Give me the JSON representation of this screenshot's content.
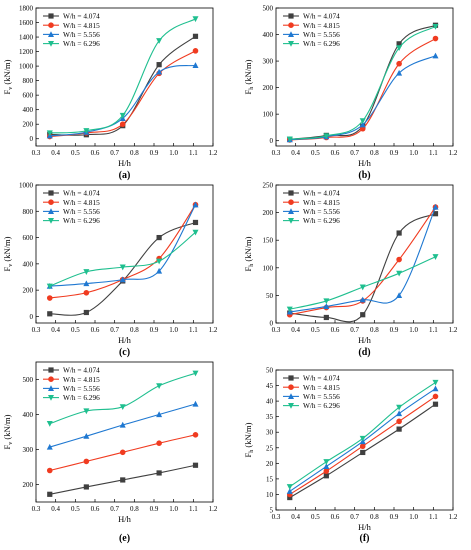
{
  "chart_data": [
    {
      "type": "line",
      "panel_label": "(a)",
      "ylabel": "F",
      "ylabel_sub": "v",
      "ylabel_unit": "(kN/m)",
      "xlabel": "H/h",
      "x_ticks": [
        "0.3",
        "0.4",
        "0.5",
        "0.6",
        "0.7",
        "0.8",
        "0.9",
        "1.0",
        "1.1",
        "1.2"
      ],
      "y_ticks": [
        "0",
        "200",
        "400",
        "600",
        "800",
        "1000",
        "1200",
        "1400",
        "1600",
        "1800"
      ],
      "xlim": [
        0.3,
        1.2
      ],
      "ylim": [
        -100,
        1800
      ],
      "legend_position": "top-left",
      "x": [
        0.37,
        0.556,
        0.741,
        0.926,
        1.111
      ],
      "series": [
        {
          "name": "W/h = 4.074",
          "color": "#404040",
          "marker": "square",
          "values": [
            60,
            55,
            180,
            1020,
            1410
          ]
        },
        {
          "name": "W/h = 4.815",
          "color": "#f03b20",
          "marker": "circle",
          "values": [
            30,
            80,
            200,
            900,
            1210
          ]
        },
        {
          "name": "W/h = 5.556",
          "color": "#1f78d1",
          "marker": "triangle-up",
          "values": [
            40,
            90,
            280,
            920,
            1010
          ]
        },
        {
          "name": "W/h = 6.296",
          "color": "#1fbf8f",
          "marker": "triangle-down",
          "values": [
            80,
            110,
            320,
            1350,
            1650
          ]
        }
      ]
    },
    {
      "type": "line",
      "panel_label": "(b)",
      "ylabel": "F",
      "ylabel_sub": "h",
      "ylabel_unit": "(kN/m)",
      "xlabel": "H/h",
      "x_ticks": [
        "0.3",
        "0.4",
        "0.5",
        "0.6",
        "0.7",
        "0.8",
        "0.9",
        "1.0",
        "1.1",
        "1.2"
      ],
      "y_ticks": [
        "0",
        "100",
        "200",
        "300",
        "400",
        "500"
      ],
      "xlim": [
        0.3,
        1.2
      ],
      "ylim": [
        -20,
        500
      ],
      "legend_position": "top-left",
      "x": [
        0.37,
        0.556,
        0.741,
        0.926,
        1.111
      ],
      "series": [
        {
          "name": "W/h = 4.074",
          "color": "#404040",
          "marker": "square",
          "values": [
            5,
            20,
            55,
            365,
            435
          ]
        },
        {
          "name": "W/h = 4.815",
          "color": "#f03b20",
          "marker": "circle",
          "values": [
            3,
            12,
            45,
            290,
            385
          ]
        },
        {
          "name": "W/h = 5.556",
          "color": "#1f78d1",
          "marker": "triangle-up",
          "values": [
            4,
            15,
            60,
            255,
            320
          ]
        },
        {
          "name": "W/h = 6.296",
          "color": "#1fbf8f",
          "marker": "triangle-down",
          "values": [
            6,
            18,
            75,
            350,
            430
          ]
        }
      ]
    },
    {
      "type": "line",
      "panel_label": "(c)",
      "ylabel": "F",
      "ylabel_sub": "v",
      "ylabel_unit": "(kN/m)",
      "xlabel": "H/h",
      "x_ticks": [
        "0.3",
        "0.4",
        "0.5",
        "0.6",
        "0.7",
        "0.8",
        "0.9",
        "1.0",
        "1.1",
        "1.2"
      ],
      "y_ticks": [
        "0",
        "200",
        "400",
        "600",
        "800",
        "1000"
      ],
      "xlim": [
        0.3,
        1.2
      ],
      "ylim": [
        -50,
        1000
      ],
      "legend_position": "top-left",
      "x": [
        0.37,
        0.556,
        0.741,
        0.926,
        1.111
      ],
      "series": [
        {
          "name": "W/h = 4.074",
          "color": "#404040",
          "marker": "square",
          "values": [
            20,
            30,
            270,
            600,
            715
          ]
        },
        {
          "name": "W/h = 4.815",
          "color": "#f03b20",
          "marker": "circle",
          "values": [
            140,
            180,
            280,
            440,
            850
          ]
        },
        {
          "name": "W/h = 5.556",
          "color": "#1f78d1",
          "marker": "triangle-up",
          "values": [
            230,
            250,
            280,
            345,
            850
          ]
        },
        {
          "name": "W/h = 6.296",
          "color": "#1fbf8f",
          "marker": "triangle-down",
          "values": [
            230,
            340,
            375,
            420,
            640
          ]
        }
      ]
    },
    {
      "type": "line",
      "panel_label": "(d)",
      "ylabel": "F",
      "ylabel_sub": "h",
      "ylabel_unit": "(kN/m)",
      "xlabel": "H/h",
      "x_ticks": [
        "0.3",
        "0.4",
        "0.5",
        "0.6",
        "0.7",
        "0.8",
        "0.9",
        "1.0",
        "1.1",
        "1.2"
      ],
      "y_ticks": [
        "0",
        "50",
        "100",
        "150",
        "200",
        "250"
      ],
      "xlim": [
        0.3,
        1.2
      ],
      "ylim": [
        0,
        250
      ],
      "legend_position": "top-left",
      "x": [
        0.37,
        0.556,
        0.741,
        0.926,
        1.111
      ],
      "series": [
        {
          "name": "W/h = 4.074",
          "color": "#404040",
          "marker": "square",
          "values": [
            18,
            10,
            15,
            163,
            198
          ]
        },
        {
          "name": "W/h = 4.815",
          "color": "#f03b20",
          "marker": "circle",
          "values": [
            15,
            28,
            40,
            115,
            210
          ]
        },
        {
          "name": "W/h = 5.556",
          "color": "#1f78d1",
          "marker": "triangle-up",
          "values": [
            20,
            30,
            42,
            50,
            210
          ]
        },
        {
          "name": "W/h = 6.296",
          "color": "#1fbf8f",
          "marker": "triangle-down",
          "values": [
            25,
            40,
            65,
            90,
            120
          ]
        }
      ]
    },
    {
      "type": "line",
      "panel_label": "(e)",
      "ylabel": "F",
      "ylabel_sub": "v",
      "ylabel_unit": "(kN/m)",
      "xlabel": "H/h",
      "x_ticks": [
        "0.3",
        "0.4",
        "0.5",
        "0.6",
        "0.7",
        "0.8",
        "0.9",
        "1.0",
        "1.1",
        "1.2"
      ],
      "y_ticks": [
        "200",
        "300",
        "400",
        "500"
      ],
      "xlim": [
        0.3,
        1.2
      ],
      "ylim": [
        150,
        550
      ],
      "legend_position": "top-left",
      "x": [
        0.37,
        0.556,
        0.741,
        0.926,
        1.111
      ],
      "series": [
        {
          "name": "W/h = 4.074",
          "color": "#404040",
          "marker": "square",
          "values": [
            172,
            193,
            213,
            233,
            255
          ]
        },
        {
          "name": "W/h = 4.815",
          "color": "#f03b20",
          "marker": "circle",
          "values": [
            240,
            266,
            292,
            318,
            342
          ]
        },
        {
          "name": "W/h = 5.556",
          "color": "#1f78d1",
          "marker": "triangle-up",
          "values": [
            307,
            338,
            370,
            400,
            430
          ]
        },
        {
          "name": "W/h = 6.296",
          "color": "#1fbf8f",
          "marker": "triangle-down",
          "values": [
            374,
            410,
            422,
            482,
            518
          ]
        }
      ]
    },
    {
      "type": "line",
      "panel_label": "(f)",
      "ylabel": "F",
      "ylabel_sub": "h",
      "ylabel_unit": "(kN/m)",
      "xlabel": "H/h",
      "x_ticks": [
        "0.3",
        "0.4",
        "0.5",
        "0.6",
        "0.7",
        "0.8",
        "0.9",
        "1.0",
        "1.1",
        "1.2"
      ],
      "y_ticks": [
        "5",
        "10",
        "15",
        "20",
        "25",
        "30",
        "35",
        "40",
        "45",
        "50"
      ],
      "xlim": [
        0.3,
        1.2
      ],
      "ylim": [
        5,
        50
      ],
      "legend_position": "top-left",
      "x": [
        0.37,
        0.556,
        0.741,
        0.926,
        1.111
      ],
      "series": [
        {
          "name": "W/h = 4.074",
          "color": "#404040",
          "marker": "square",
          "values": [
            9,
            16,
            23.5,
            31,
            39
          ]
        },
        {
          "name": "W/h = 4.815",
          "color": "#f03b20",
          "marker": "circle",
          "values": [
            10,
            17.5,
            25.5,
            33.5,
            41.5
          ]
        },
        {
          "name": "W/h = 5.556",
          "color": "#1f78d1",
          "marker": "triangle-up",
          "values": [
            11,
            19,
            27,
            36,
            44
          ]
        },
        {
          "name": "W/h = 6.296",
          "color": "#1fbf8f",
          "marker": "triangle-down",
          "values": [
            12.5,
            20.5,
            28,
            38,
            46
          ]
        }
      ]
    }
  ]
}
